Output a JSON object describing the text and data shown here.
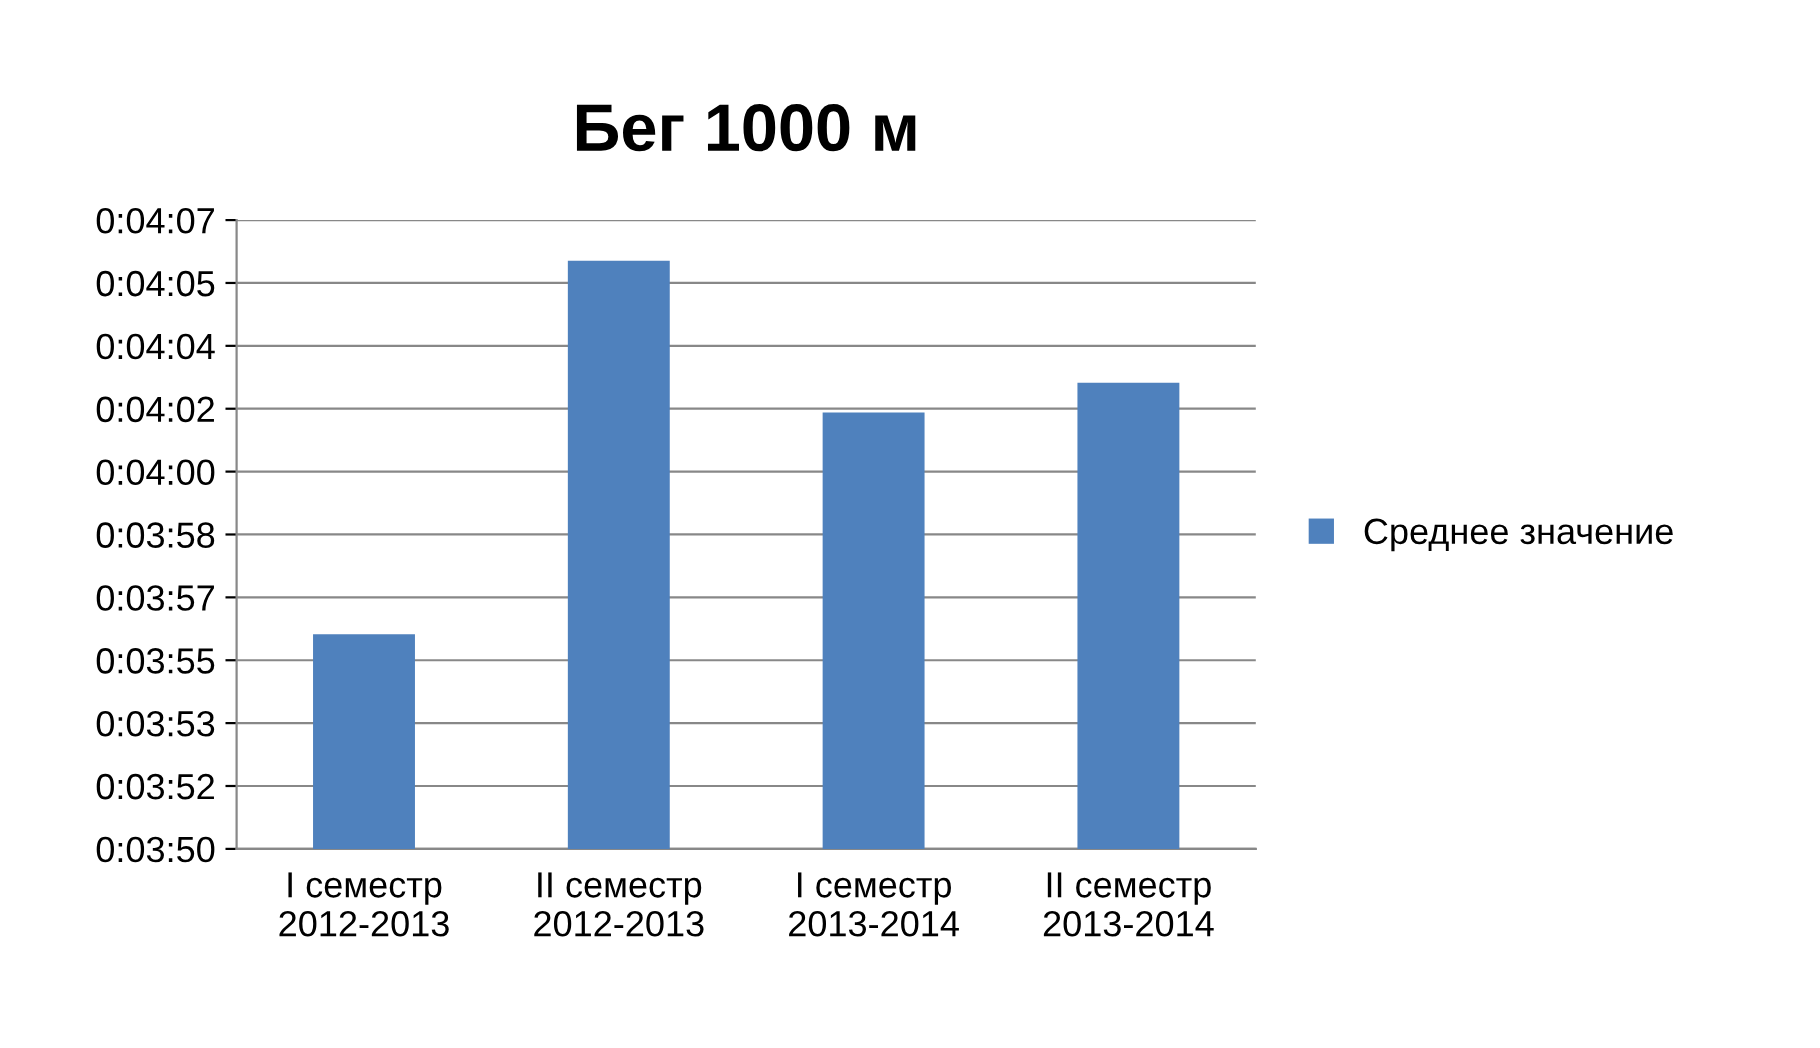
{
  "chart_data": {
    "type": "bar",
    "title": "Бег 1000 м",
    "categories": [
      "I семестр\n2012-2013",
      "II семестр\n2012-2013",
      "I семестр\n2013-2014",
      "II семестр\n2013-2014"
    ],
    "series": [
      {
        "name": "Среднее значение",
        "color": "#4f81bd",
        "values": [
          235.8,
          245.9,
          241.8,
          242.6
        ]
      }
    ],
    "ylim": [
      230,
      247
    ],
    "yticks": [
      {
        "value": 230,
        "label": "0:03:50"
      },
      {
        "value": 231.7,
        "label": "0:03:52"
      },
      {
        "value": 233.4,
        "label": "0:03:53"
      },
      {
        "value": 235.1,
        "label": "0:03:55"
      },
      {
        "value": 236.8,
        "label": "0:03:57"
      },
      {
        "value": 238.5,
        "label": "0:03:58"
      },
      {
        "value": 240.2,
        "label": "0:04:00"
      },
      {
        "value": 241.9,
        "label": "0:04:02"
      },
      {
        "value": 243.6,
        "label": "0:04:04"
      },
      {
        "value": 245.3,
        "label": "0:04:05"
      },
      {
        "value": 247,
        "label": "0:04:07"
      }
    ],
    "grid": "y",
    "legend": "right"
  }
}
